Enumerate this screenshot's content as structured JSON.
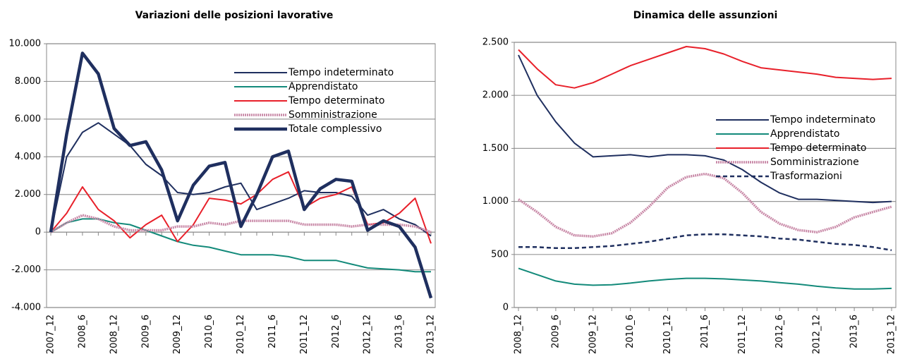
{
  "chart_data": [
    {
      "type": "line",
      "title": "Variazioni delle posizioni lavorative",
      "categories": [
        "2007_12",
        null,
        "2008_6",
        null,
        "2008_12",
        null,
        "2009_6",
        null,
        "2009_12",
        null,
        "2010_6",
        null,
        "2010_12",
        null,
        "2011_6",
        null,
        "2011_12",
        null,
        "2012_6",
        null,
        "2012_12",
        null,
        "2013_6",
        null,
        "2013_12"
      ],
      "ylim": [
        -4000,
        10000
      ],
      "yticks": [
        {
          "value": -4000,
          "label": "-4.000"
        },
        {
          "value": -2000,
          "label": "-2.000"
        },
        0,
        {
          "value": 2000,
          "label": "2.000"
        },
        {
          "value": 4000,
          "label": "4.000"
        },
        {
          "value": 6000,
          "label": "6.000"
        },
        {
          "value": 8000,
          "label": "8.000"
        },
        {
          "value": 10000,
          "label": "10.000"
        }
      ],
      "grid": true,
      "legend": "upper right",
      "series": [
        {
          "name": "Tempo indeterminato",
          "color": "#1f2f5f",
          "values": [
            0,
            4000,
            5300,
            5800,
            5200,
            4600,
            3600,
            3000,
            2100,
            2000,
            2100,
            2400,
            2600,
            1200,
            1500,
            1800,
            2200,
            2100,
            2100,
            1900,
            900,
            1200,
            700,
            400,
            -200
          ]
        },
        {
          "name": "Apprendistato",
          "color": "#138a7a",
          "values": [
            0,
            500,
            700,
            700,
            500,
            400,
            100,
            -200,
            -500,
            -700,
            -800,
            -1000,
            -1200,
            -1200,
            -1200,
            -1300,
            -1500,
            -1500,
            -1500,
            -1700,
            -1900,
            -1950,
            -2000,
            -2100,
            -2100
          ]
        },
        {
          "name": "Tempo determinato",
          "color": "#e8202a",
          "values": [
            0,
            1000,
            2400,
            1200,
            600,
            -300,
            400,
            900,
            -500,
            400,
            1800,
            1700,
            1500,
            2000,
            2800,
            3200,
            1300,
            1800,
            2000,
            2400,
            400,
            500,
            1000,
            1800,
            -600
          ]
        },
        {
          "name": "Somministrazione",
          "color": "#c98aa8",
          "values": [
            0,
            500,
            900,
            700,
            300,
            100,
            100,
            100,
            300,
            300,
            500,
            400,
            600,
            600,
            600,
            600,
            400,
            400,
            400,
            300,
            400,
            400,
            400,
            300,
            0
          ]
        },
        {
          "name": "Totale complessivo",
          "color": "#1f2f5f",
          "values": [
            0,
            5200,
            9500,
            8400,
            5500,
            4600,
            4800,
            3300,
            600,
            2500,
            3500,
            3700,
            300,
            2000,
            4000,
            4300,
            1200,
            2300,
            2800,
            2700,
            100,
            600,
            300,
            -800,
            -3500
          ]
        }
      ]
    },
    {
      "type": "line",
      "title": "Dinamica delle assunzioni",
      "categories": [
        "2008_12",
        null,
        "2009_6",
        null,
        "2009_12",
        null,
        "2010_6",
        null,
        "2010_12",
        null,
        "2011_6",
        null,
        "2011_12",
        null,
        "2012_6",
        null,
        "2012_12",
        null,
        "2013_6",
        null,
        "2013_12"
      ],
      "ylim": [
        0,
        2500
      ],
      "yticks": [
        0,
        500,
        {
          "value": 1000,
          "label": "1.000"
        },
        {
          "value": 1500,
          "label": "1.500"
        },
        {
          "value": 2000,
          "label": "2.000"
        },
        {
          "value": 2500,
          "label": "2.500"
        }
      ],
      "grid": true,
      "legend": "center right",
      "series": [
        {
          "name": "Tempo indeterminato",
          "color": "#1f2f5f",
          "values": [
            2380,
            2000,
            1750,
            1550,
            1420,
            1430,
            1440,
            1420,
            1440,
            1440,
            1430,
            1390,
            1300,
            1180,
            1080,
            1020,
            1020,
            1010,
            1000,
            990,
            1000
          ]
        },
        {
          "name": "Apprendistato",
          "color": "#138a7a",
          "values": [
            370,
            310,
            250,
            220,
            210,
            215,
            230,
            250,
            265,
            275,
            275,
            270,
            260,
            250,
            235,
            220,
            200,
            185,
            175,
            175,
            180
          ]
        },
        {
          "name": "Tempo determinato",
          "color": "#e8202a",
          "values": [
            2430,
            2250,
            2100,
            2070,
            2120,
            2200,
            2280,
            2340,
            2400,
            2460,
            2440,
            2390,
            2320,
            2260,
            2240,
            2220,
            2200,
            2170,
            2160,
            2150,
            2160
          ]
        },
        {
          "name": "Somministrazione",
          "color": "#c98aa8",
          "values": [
            1020,
            900,
            760,
            680,
            670,
            700,
            800,
            950,
            1130,
            1230,
            1260,
            1220,
            1080,
            900,
            790,
            730,
            710,
            760,
            850,
            900,
            950
          ]
        },
        {
          "name": "Trasformazioni",
          "color": "#1f2f5f",
          "values": [
            570,
            570,
            560,
            560,
            570,
            580,
            600,
            620,
            650,
            680,
            690,
            690,
            680,
            670,
            650,
            640,
            620,
            600,
            590,
            570,
            540
          ]
        }
      ]
    }
  ]
}
